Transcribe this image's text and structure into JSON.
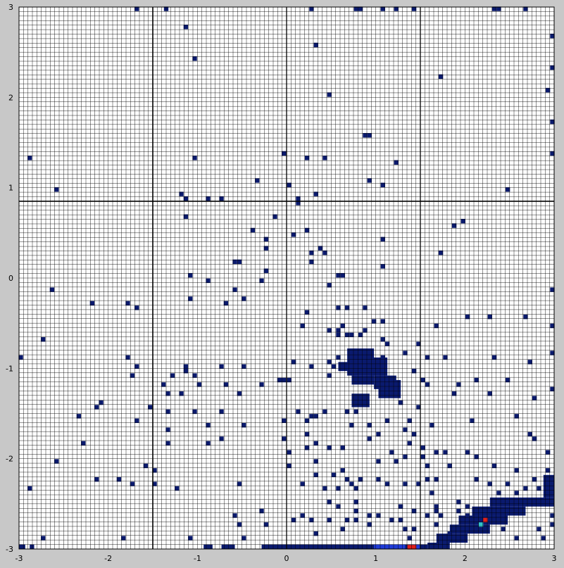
{
  "chart_data": {
    "type": "heatmap",
    "title": "",
    "xlabel": "",
    "ylabel": "",
    "xlim": [
      -3,
      3
    ],
    "ylim": [
      -3,
      3
    ],
    "grid": true,
    "grid_cells": 120,
    "x_ticks": [
      -3,
      -2,
      -1,
      0,
      1,
      2,
      3
    ],
    "y_ticks": [
      3,
      2,
      1,
      0,
      -1,
      -2,
      -3
    ],
    "x_tick_labels": [
      "-3",
      "-2",
      "-1",
      "0",
      "1",
      "2",
      "3"
    ],
    "y_tick_labels": [
      "3",
      "2",
      "1",
      "0",
      "-1",
      "-2",
      "-3"
    ],
    "crosshair": {
      "x": -1.5,
      "y": 0.85
    },
    "crosshair_secondary": {
      "x": 0.0,
      "x2": 1.5
    },
    "colors": {
      "background": "#c8c8c8",
      "cell_empty": "#ffffff",
      "grid_line": "#000000",
      "low": "#0a1a6e",
      "mid": "#1f3bd6",
      "high": "#e0201a",
      "peak": "#33c3c8"
    },
    "cells": [
      [
        -1.68,
        2.98
      ],
      [
        -1.35,
        2.98
      ],
      [
        0.28,
        2.98
      ],
      [
        0.78,
        2.98
      ],
      [
        0.83,
        2.98
      ],
      [
        1.08,
        2.98
      ],
      [
        1.23,
        2.98
      ],
      [
        1.43,
        2.98
      ],
      [
        2.33,
        2.98
      ],
      [
        2.38,
        2.98
      ],
      [
        2.68,
        2.98
      ],
      [
        -1.13,
        2.78
      ],
      [
        2.98,
        2.68
      ],
      [
        0.33,
        2.58
      ],
      [
        2.98,
        2.33
      ],
      [
        -1.03,
        2.43
      ],
      [
        1.73,
        2.23
      ],
      [
        2.93,
        2.08
      ],
      [
        0.48,
        2.03
      ],
      [
        2.98,
        1.73
      ],
      [
        0.88,
        1.58
      ],
      [
        0.93,
        1.58
      ],
      [
        -2.88,
        1.33
      ],
      [
        -1.03,
        1.33
      ],
      [
        -0.03,
        1.38
      ],
      [
        0.23,
        1.33
      ],
      [
        0.43,
        1.33
      ],
      [
        1.23,
        1.28
      ],
      [
        2.98,
        1.38
      ],
      [
        -0.33,
        1.08
      ],
      [
        0.03,
        1.03
      ],
      [
        0.93,
        1.08
      ],
      [
        1.08,
        1.03
      ],
      [
        -2.58,
        0.98
      ],
      [
        2.48,
        0.98
      ],
      [
        -1.18,
        0.93
      ],
      [
        -1.13,
        0.88
      ],
      [
        -0.88,
        0.88
      ],
      [
        -0.73,
        0.88
      ],
      [
        0.13,
        0.88
      ],
      [
        0.33,
        0.93
      ],
      [
        0.13,
        0.83
      ],
      [
        -1.13,
        0.68
      ],
      [
        -0.13,
        0.68
      ],
      [
        -0.38,
        0.53
      ],
      [
        0.08,
        0.48
      ],
      [
        0.23,
        0.53
      ],
      [
        -0.23,
        0.43
      ],
      [
        -0.23,
        0.33
      ],
      [
        -0.58,
        0.18
      ],
      [
        -0.53,
        0.18
      ],
      [
        0.28,
        0.28
      ],
      [
        0.38,
        0.33
      ],
      [
        0.43,
        0.28
      ],
      [
        1.08,
        0.43
      ],
      [
        1.08,
        0.13
      ],
      [
        0.28,
        0.18
      ],
      [
        1.88,
        0.58
      ],
      [
        1.98,
        0.63
      ],
      [
        1.73,
        0.28
      ],
      [
        -0.23,
        0.08
      ],
      [
        -1.08,
        0.03
      ],
      [
        -0.88,
        -0.03
      ],
      [
        -0.28,
        -0.03
      ],
      [
        0.48,
        -0.08
      ],
      [
        0.58,
        0.03
      ],
      [
        0.63,
        0.03
      ],
      [
        -2.63,
        -0.13
      ],
      [
        -0.58,
        -0.13
      ],
      [
        -0.48,
        -0.23
      ],
      [
        2.98,
        -0.13
      ],
      [
        -2.18,
        -0.28
      ],
      [
        -1.78,
        -0.28
      ],
      [
        -1.68,
        -0.33
      ],
      [
        -1.08,
        -0.23
      ],
      [
        -0.68,
        -0.28
      ],
      [
        0.23,
        -0.38
      ],
      [
        0.58,
        -0.33
      ],
      [
        0.68,
        -0.33
      ],
      [
        0.88,
        -0.33
      ],
      [
        0.18,
        -0.53
      ],
      [
        0.48,
        -0.58
      ],
      [
        0.58,
        -0.58
      ],
      [
        0.63,
        -0.53
      ],
      [
        0.98,
        -0.48
      ],
      [
        1.08,
        -0.48
      ],
      [
        2.03,
        -0.43
      ],
      [
        2.28,
        -0.43
      ],
      [
        2.68,
        -0.43
      ],
      [
        2.98,
        -0.53
      ],
      [
        -2.73,
        -0.68
      ],
      [
        0.58,
        -0.63
      ],
      [
        0.68,
        -0.63
      ],
      [
        0.73,
        -0.63
      ],
      [
        0.83,
        -0.63
      ],
      [
        0.88,
        -0.58
      ],
      [
        1.08,
        -0.68
      ],
      [
        1.13,
        -0.73
      ],
      [
        1.48,
        -0.73
      ],
      [
        1.68,
        -0.53
      ],
      [
        -2.98,
        -0.88
      ],
      [
        -1.78,
        -0.88
      ],
      [
        -1.68,
        -0.98
      ],
      [
        -1.13,
        -0.98
      ],
      [
        -0.73,
        -0.98
      ],
      [
        -0.48,
        -0.98
      ],
      [
        0.08,
        -0.93
      ],
      [
        0.28,
        -0.98
      ],
      [
        0.48,
        -0.93
      ],
      [
        0.53,
        -0.98
      ],
      [
        0.58,
        -0.88
      ],
      [
        1.08,
        -0.88
      ],
      [
        1.33,
        -0.83
      ],
      [
        1.58,
        -0.88
      ],
      [
        1.78,
        -0.88
      ],
      [
        2.33,
        -0.88
      ],
      [
        2.73,
        -0.93
      ],
      [
        2.98,
        -0.83
      ],
      [
        -1.73,
        -1.08
      ],
      [
        -1.28,
        -1.08
      ],
      [
        -1.13,
        -1.03
      ],
      [
        -1.03,
        -1.08
      ],
      [
        -0.08,
        -1.13
      ],
      [
        -0.03,
        -1.13
      ],
      [
        0.03,
        -1.13
      ],
      [
        0.48,
        -1.08
      ],
      [
        1.43,
        -1.03
      ],
      [
        1.53,
        -1.13
      ],
      [
        2.13,
        -1.13
      ],
      [
        2.48,
        -1.13
      ],
      [
        -1.38,
        -1.18
      ],
      [
        -0.98,
        -1.18
      ],
      [
        -0.68,
        -1.18
      ],
      [
        -0.28,
        -1.18
      ],
      [
        1.58,
        -1.18
      ],
      [
        1.93,
        -1.18
      ],
      [
        -2.08,
        -1.38
      ],
      [
        -1.33,
        -1.28
      ],
      [
        -1.18,
        -1.28
      ],
      [
        -0.53,
        -1.28
      ],
      [
        1.88,
        -1.28
      ],
      [
        2.28,
        -1.28
      ],
      [
        2.78,
        -1.33
      ],
      [
        2.98,
        -1.23
      ],
      [
        -2.13,
        -1.43
      ],
      [
        -1.53,
        -1.43
      ],
      [
        -1.33,
        -1.48
      ],
      [
        -1.03,
        -1.48
      ],
      [
        -0.73,
        -1.48
      ],
      [
        0.13,
        -1.48
      ],
      [
        0.43,
        -1.48
      ],
      [
        0.68,
        -1.48
      ],
      [
        0.78,
        -1.48
      ],
      [
        1.28,
        -1.38
      ],
      [
        1.48,
        -1.43
      ],
      [
        -2.33,
        -1.53
      ],
      [
        -1.68,
        -1.58
      ],
      [
        -0.88,
        -1.63
      ],
      [
        -0.48,
        -1.63
      ],
      [
        -0.03,
        -1.58
      ],
      [
        0.23,
        -1.58
      ],
      [
        0.28,
        -1.53
      ],
      [
        0.33,
        -1.53
      ],
      [
        0.73,
        -1.63
      ],
      [
        0.93,
        -1.63
      ],
      [
        1.13,
        -1.58
      ],
      [
        1.38,
        -1.58
      ],
      [
        1.63,
        -1.63
      ],
      [
        2.08,
        -1.58
      ],
      [
        2.58,
        -1.53
      ],
      [
        -1.33,
        -1.68
      ],
      [
        -0.73,
        -1.78
      ],
      [
        -0.03,
        -1.78
      ],
      [
        0.23,
        -1.73
      ],
      [
        0.33,
        -1.83
      ],
      [
        0.93,
        -1.78
      ],
      [
        1.03,
        -1.73
      ],
      [
        1.33,
        -1.68
      ],
      [
        1.43,
        -1.73
      ],
      [
        1.38,
        -1.83
      ],
      [
        1.53,
        -1.88
      ],
      [
        2.73,
        -1.73
      ],
      [
        2.78,
        -1.78
      ],
      [
        -2.28,
        -1.83
      ],
      [
        -1.33,
        -1.83
      ],
      [
        -0.88,
        -1.83
      ],
      [
        0.03,
        -1.93
      ],
      [
        0.23,
        -1.88
      ],
      [
        0.48,
        -1.88
      ],
      [
        0.63,
        -1.88
      ],
      [
        1.18,
        -1.93
      ],
      [
        1.33,
        -1.98
      ],
      [
        1.53,
        -1.98
      ],
      [
        1.68,
        -1.93
      ],
      [
        1.78,
        -1.93
      ],
      [
        2.03,
        -1.93
      ],
      [
        2.13,
        -1.98
      ],
      [
        2.93,
        -1.93
      ],
      [
        -2.58,
        -2.03
      ],
      [
        -1.58,
        -2.08
      ],
      [
        -1.48,
        -2.13
      ],
      [
        0.03,
        -2.08
      ],
      [
        0.33,
        -2.03
      ],
      [
        0.63,
        -2.13
      ],
      [
        1.03,
        -2.03
      ],
      [
        1.23,
        -2.03
      ],
      [
        1.58,
        -2.08
      ],
      [
        1.83,
        -2.08
      ],
      [
        2.33,
        -2.08
      ],
      [
        2.58,
        -2.13
      ],
      [
        2.93,
        -2.13
      ],
      [
        -2.13,
        -2.23
      ],
      [
        -1.88,
        -2.23
      ],
      [
        -1.73,
        -2.28
      ],
      [
        -1.48,
        -2.28
      ],
      [
        -1.23,
        -2.33
      ],
      [
        0.33,
        -2.18
      ],
      [
        0.53,
        -2.18
      ],
      [
        0.68,
        -2.23
      ],
      [
        0.83,
        -2.23
      ],
      [
        1.03,
        -2.23
      ],
      [
        1.13,
        -2.28
      ],
      [
        1.33,
        -2.28
      ],
      [
        1.48,
        -2.28
      ],
      [
        1.58,
        -2.23
      ],
      [
        1.68,
        -2.23
      ],
      [
        2.13,
        -2.23
      ],
      [
        2.28,
        -2.28
      ],
      [
        2.48,
        -2.28
      ],
      [
        2.78,
        -2.23
      ],
      [
        2.93,
        -2.23
      ],
      [
        -2.88,
        -2.33
      ],
      [
        -0.53,
        -2.28
      ],
      [
        0.18,
        -2.28
      ],
      [
        0.43,
        -2.33
      ],
      [
        0.58,
        -2.33
      ],
      [
        0.73,
        -2.28
      ],
      [
        0.78,
        -2.33
      ],
      [
        1.63,
        -2.38
      ],
      [
        2.38,
        -2.38
      ],
      [
        2.58,
        -2.38
      ],
      [
        2.68,
        -2.33
      ],
      [
        2.83,
        -2.33
      ],
      [
        0.48,
        -2.48
      ],
      [
        0.58,
        -2.53
      ],
      [
        0.78,
        -2.48
      ],
      [
        0.78,
        -2.58
      ],
      [
        1.28,
        -2.53
      ],
      [
        1.43,
        -2.58
      ],
      [
        1.68,
        -2.53
      ],
      [
        1.93,
        -2.48
      ],
      [
        2.03,
        -2.53
      ],
      [
        2.13,
        -2.58
      ],
      [
        2.48,
        -2.48
      ],
      [
        2.58,
        -2.48
      ],
      [
        -0.58,
        -2.63
      ],
      [
        -0.28,
        -2.58
      ],
      [
        0.18,
        -2.63
      ],
      [
        0.28,
        -2.68
      ],
      [
        0.48,
        -2.68
      ],
      [
        0.68,
        -2.68
      ],
      [
        0.78,
        -2.68
      ],
      [
        0.93,
        -2.63
      ],
      [
        1.03,
        -2.63
      ],
      [
        1.18,
        -2.68
      ],
      [
        1.28,
        -2.68
      ],
      [
        1.58,
        -2.63
      ],
      [
        1.68,
        -2.58
      ],
      [
        1.73,
        -2.63
      ],
      [
        1.93,
        -2.58
      ],
      [
        2.03,
        -2.63
      ],
      [
        2.98,
        -2.63
      ],
      [
        -0.53,
        -2.73
      ],
      [
        -0.23,
        -2.73
      ],
      [
        0.08,
        -2.68
      ],
      [
        0.63,
        -2.78
      ],
      [
        0.93,
        -2.73
      ],
      [
        1.33,
        -2.78
      ],
      [
        1.43,
        -2.78
      ],
      [
        1.68,
        -2.73
      ],
      [
        2.23,
        -2.78
      ],
      [
        2.43,
        -2.78
      ],
      [
        2.83,
        -2.78
      ],
      [
        2.98,
        -2.73
      ],
      [
        -2.73,
        -2.88
      ],
      [
        -1.83,
        -2.88
      ],
      [
        -1.08,
        -2.88
      ],
      [
        -0.48,
        -2.88
      ],
      [
        0.33,
        -2.83
      ],
      [
        1.38,
        -2.88
      ],
      [
        1.83,
        -2.83
      ],
      [
        1.98,
        -2.78
      ],
      [
        2.58,
        -2.88
      ],
      [
        2.88,
        -2.88
      ]
    ],
    "rects": [
      {
        "x0": 0.68,
        "x1": 0.98,
        "y0": -1.08,
        "y1": -0.78,
        "level": "low"
      },
      {
        "x0": 0.58,
        "x1": 0.73,
        "y0": -1.03,
        "y1": -0.93,
        "level": "low"
      },
      {
        "x0": 0.93,
        "x1": 1.13,
        "y0": -1.08,
        "y1": -0.88,
        "level": "low"
      },
      {
        "x0": 0.73,
        "x1": 0.98,
        "y0": -1.18,
        "y1": -1.08,
        "level": "low"
      },
      {
        "x0": 0.98,
        "x1": 1.23,
        "y0": -1.23,
        "y1": -1.08,
        "level": "low"
      },
      {
        "x0": 0.73,
        "x1": 0.93,
        "y0": -1.43,
        "y1": -1.28,
        "level": "low"
      },
      {
        "x0": 1.03,
        "x1": 1.28,
        "y0": -1.33,
        "y1": -1.13,
        "level": "low"
      },
      {
        "x0": 2.28,
        "x1": 3.0,
        "y0": -2.53,
        "y1": -2.43,
        "level": "low"
      },
      {
        "x0": 2.08,
        "x1": 2.68,
        "y0": -2.63,
        "y1": -2.53,
        "level": "low"
      },
      {
        "x0": 1.93,
        "x1": 2.48,
        "y0": -2.73,
        "y1": -2.63,
        "level": "low"
      },
      {
        "x0": 1.83,
        "x1": 2.28,
        "y0": -2.83,
        "y1": -2.73,
        "level": "low"
      },
      {
        "x0": 1.68,
        "x1": 2.03,
        "y0": -2.93,
        "y1": -2.83,
        "level": "low"
      },
      {
        "x0": 1.58,
        "x1": 1.83,
        "y0": -3.0,
        "y1": -2.93,
        "level": "low"
      },
      {
        "x0": 2.88,
        "x1": 3.0,
        "y0": -2.43,
        "y1": -2.18,
        "level": "low"
      },
      {
        "x0": -0.28,
        "x1": 1.58,
        "y0": -3.0,
        "y1": -2.95,
        "level": "low"
      },
      {
        "x0": 0.98,
        "x1": 1.33,
        "y0": -3.0,
        "y1": -2.95,
        "level": "mid"
      },
      {
        "x0": 1.13,
        "x1": 1.28,
        "y0": -3.0,
        "y1": -2.95,
        "level": "mid"
      },
      {
        "x0": -3.0,
        "x1": -2.93,
        "y0": -3.0,
        "y1": -2.95,
        "level": "low"
      },
      {
        "x0": -2.88,
        "x1": -2.83,
        "y0": -3.0,
        "y1": -2.95,
        "level": "low"
      },
      {
        "x0": -0.73,
        "x1": -0.58,
        "y0": -3.0,
        "y1": -2.95,
        "level": "low"
      },
      {
        "x0": -0.93,
        "x1": -0.83,
        "y0": -3.0,
        "y1": -2.95,
        "level": "low"
      }
    ],
    "hot_cells": [
      {
        "x": 1.38,
        "y": -2.98,
        "level": "high"
      },
      {
        "x": 1.43,
        "y": -2.98,
        "level": "high"
      },
      {
        "x": 2.18,
        "y": -2.73,
        "level": "peak"
      },
      {
        "x": 2.23,
        "y": -2.68,
        "level": "high"
      },
      {
        "x": 1.48,
        "y": -2.98,
        "level": "mid"
      }
    ]
  }
}
